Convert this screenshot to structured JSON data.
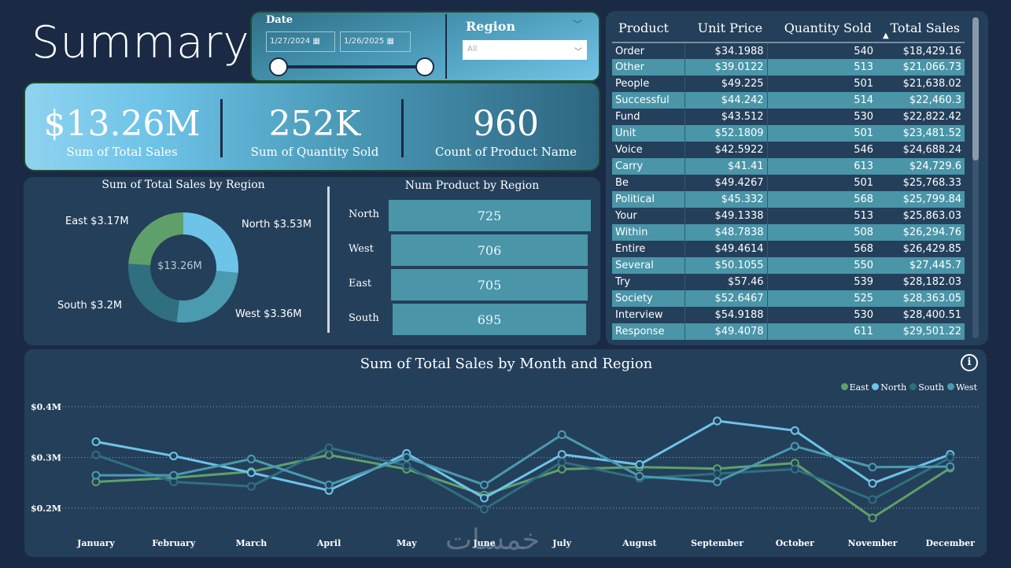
{
  "page_title": "Summary",
  "filters": {
    "date_label": "Date",
    "date_start": "1/27/2024",
    "date_end": "1/26/2025",
    "region_label": "Region",
    "region_value": "All"
  },
  "kpis": [
    {
      "value": "$13.26M",
      "label": "Sum of Total Sales"
    },
    {
      "value": "252K",
      "label": "Sum of Quantity Sold"
    },
    {
      "value": "960",
      "label": "Count of Product Name"
    }
  ],
  "donut": {
    "title": "Sum of Total Sales by Region",
    "center": "$13.26M",
    "slices": [
      {
        "region": "North",
        "value": 3.53,
        "label": "North $3.53M",
        "color": "#6ec3e8"
      },
      {
        "region": "West",
        "value": 3.36,
        "label": "West $3.36M",
        "color": "#4a9ab0"
      },
      {
        "region": "South",
        "value": 3.2,
        "label": "South $3.2M",
        "color": "#2f6f80"
      },
      {
        "region": "East",
        "value": 3.17,
        "label": "East $3.17M",
        "color": "#5fa06a"
      }
    ]
  },
  "bars": {
    "title": "Num Product by Region",
    "items": [
      {
        "region": "North",
        "value": "725"
      },
      {
        "region": "West",
        "value": "706"
      },
      {
        "region": "East",
        "value": "705"
      },
      {
        "region": "South",
        "value": "695"
      }
    ]
  },
  "table": {
    "headers": [
      "Product",
      "Unit Price",
      "Quantity Sold",
      "Total Sales"
    ],
    "sort_column": "Total Sales",
    "rows": [
      [
        "Order",
        "$34.1988",
        "540",
        "$18,429.16"
      ],
      [
        "Other",
        "$39.0122",
        "513",
        "$21,066.73"
      ],
      [
        "People",
        "$49.225",
        "501",
        "$21,638.02"
      ],
      [
        "Successful",
        "$44.242",
        "514",
        "$22,460.3"
      ],
      [
        "Fund",
        "$43.512",
        "530",
        "$22,822.42"
      ],
      [
        "Unit",
        "$52.1809",
        "501",
        "$23,481.52"
      ],
      [
        "Voice",
        "$42.5922",
        "546",
        "$24,688.24"
      ],
      [
        "Carry",
        "$41.41",
        "613",
        "$24,729.6"
      ],
      [
        "Be",
        "$49.4267",
        "501",
        "$25,768.33"
      ],
      [
        "Political",
        "$45.332",
        "568",
        "$25,799.84"
      ],
      [
        "Your",
        "$49.1338",
        "513",
        "$25,863.03"
      ],
      [
        "Within",
        "$48.7838",
        "508",
        "$26,294.76"
      ],
      [
        "Entire",
        "$49.4614",
        "568",
        "$26,429.85"
      ],
      [
        "Several",
        "$50.1055",
        "550",
        "$27,445.7"
      ],
      [
        "Try",
        "$57.46",
        "539",
        "$28,182.03"
      ],
      [
        "Society",
        "$52.6467",
        "525",
        "$28,363.05"
      ],
      [
        "Interview",
        "$54.9188",
        "530",
        "$28,400.51"
      ],
      [
        "Response",
        "$49.4078",
        "611",
        "$29,501.22"
      ]
    ]
  },
  "chart_data": {
    "type": "line",
    "title": "Sum of Total Sales by Month and Region",
    "categories": [
      "January",
      "February",
      "March",
      "April",
      "May",
      "June",
      "July",
      "August",
      "September",
      "October",
      "November",
      "December"
    ],
    "yticks": [
      "$0.2M",
      "$0.3M",
      "$0.4M"
    ],
    "ylim": [
      0.2,
      0.4
    ],
    "grid": true,
    "legend": "top-right",
    "series": [
      {
        "name": "East",
        "color": "#5fa06a",
        "values": [
          0.252,
          0.26,
          0.272,
          0.305,
          0.277,
          0.226,
          0.277,
          0.281,
          0.278,
          0.289,
          0.181,
          0.279
        ]
      },
      {
        "name": "North",
        "color": "#6ec3e8",
        "values": [
          0.331,
          0.303,
          0.27,
          0.235,
          0.308,
          0.22,
          0.306,
          0.286,
          0.372,
          0.353,
          0.249,
          0.306
        ]
      },
      {
        "name": "South",
        "color": "#2f6f80",
        "values": [
          0.305,
          0.252,
          0.243,
          0.319,
          0.284,
          0.198,
          0.291,
          0.259,
          0.268,
          0.277,
          0.217,
          0.3
        ]
      },
      {
        "name": "West",
        "color": "#4a9ab0",
        "values": [
          0.265,
          0.265,
          0.297,
          0.246,
          0.3,
          0.246,
          0.345,
          0.263,
          0.252,
          0.322,
          0.281,
          0.282
        ]
      }
    ]
  },
  "watermark": "خمسات"
}
